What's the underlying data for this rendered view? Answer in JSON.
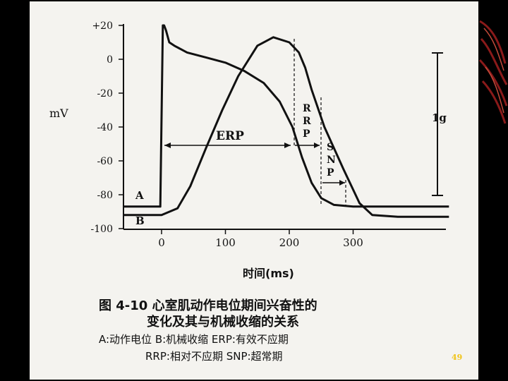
{
  "slide": {
    "page_number": "49",
    "page_number_color": "#f0c419",
    "background_color": "#000000",
    "paper_color": "#f4f3ef",
    "decoration": "red-swirl-ornament"
  },
  "chart_data": {
    "type": "line",
    "ylabel": "mV",
    "xlabel": "时间(ms)",
    "x_ticks": [
      "0",
      "100",
      "200",
      "300"
    ],
    "y_ticks": [
      "+20",
      "0",
      "-20",
      "-40",
      "-60",
      "-80",
      "-100"
    ],
    "xlim": [
      -60,
      450
    ],
    "ylim": [
      -100,
      20
    ],
    "series": [
      {
        "name": "A",
        "points": [
          [
            -60,
            -87
          ],
          [
            -2,
            -87
          ],
          [
            2,
            20
          ],
          [
            4,
            20
          ],
          [
            7,
            17
          ],
          [
            12,
            10
          ],
          [
            20,
            8
          ],
          [
            40,
            4
          ],
          [
            70,
            1
          ],
          [
            100,
            -2
          ],
          [
            130,
            -7
          ],
          [
            160,
            -14
          ],
          [
            185,
            -25
          ],
          [
            205,
            -40
          ],
          [
            220,
            -58
          ],
          [
            235,
            -73
          ],
          [
            250,
            -82
          ],
          [
            270,
            -86
          ],
          [
            300,
            -87
          ],
          [
            450,
            -87
          ]
        ]
      },
      {
        "name": "B",
        "points": [
          [
            -60,
            -92
          ],
          [
            0,
            -92
          ],
          [
            25,
            -88
          ],
          [
            45,
            -75
          ],
          [
            70,
            -52
          ],
          [
            95,
            -30
          ],
          [
            120,
            -10
          ],
          [
            150,
            8
          ],
          [
            175,
            13
          ],
          [
            200,
            10
          ],
          [
            215,
            4
          ],
          [
            225,
            -5
          ],
          [
            235,
            -18
          ],
          [
            255,
            -40
          ],
          [
            285,
            -65
          ],
          [
            310,
            -85
          ],
          [
            330,
            -92
          ],
          [
            370,
            -93
          ],
          [
            450,
            -93
          ]
        ]
      }
    ],
    "annotations": {
      "erp": "ERP",
      "rrp": [
        "R",
        "R",
        "P"
      ],
      "snp": [
        "S",
        "N",
        "P"
      ],
      "scale": "1g"
    },
    "legend": {
      "a": "A",
      "b": "B"
    }
  },
  "caption": {
    "line1": "图 4-10  心室肌动作电位期间兴奋性的",
    "line2": "变化及其与机械收缩的关系",
    "line3": "A:动作电位  B:机械收缩  ERP:有效不应期",
    "line4": "RRP:相对不应期  SNP:超常期"
  }
}
